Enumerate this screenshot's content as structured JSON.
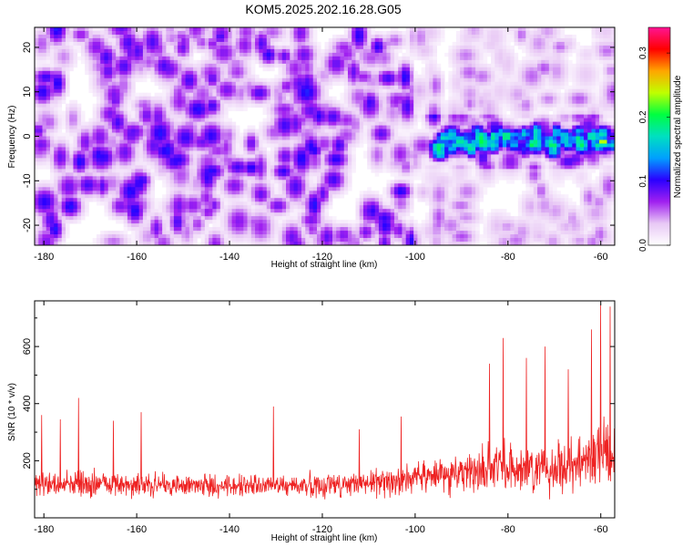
{
  "figure_title": "KOM5.2025.202.16.28.G05",
  "chart_data": [
    {
      "type": "heatmap",
      "title": "KOM5.2025.202.16.28.G05",
      "xlabel": "Height of straight line (km)",
      "ylabel": "Frequency (Hz)",
      "xlim": [
        -182,
        -57
      ],
      "ylim": [
        -24.5,
        24.5
      ],
      "xticks": [
        -180,
        -160,
        -140,
        -120,
        -100,
        -80,
        -60
      ],
      "yticks": [
        -20,
        -10,
        0,
        10,
        20
      ],
      "colorbar": {
        "label": "Normalized spectral amplitude",
        "range": [
          0.0,
          0.34
        ],
        "ticks": [
          0.0,
          0.1,
          0.2,
          0.3
        ],
        "colors": [
          "#ffffff",
          "#e8c8f5",
          "#a020f0",
          "#2a00ff",
          "#00a0ff",
          "#00e0c0",
          "#00ff40",
          "#c0ff00",
          "#ffa500",
          "#ff0000",
          "#ff1493"
        ]
      },
      "features": [
        {
          "x_range": [
            -182,
            -100
          ],
          "y_range": [
            -24.5,
            24.5
          ],
          "typical_amplitude": 0.05,
          "max_amplitude": 0.12
        },
        {
          "x_range": [
            -100,
            -57
          ],
          "y_range": [
            -5,
            5
          ],
          "typical_amplitude": 0.15,
          "max_amplitude": 0.33
        },
        {
          "x": -59.5,
          "y": -1.5,
          "amplitude": 0.33
        }
      ]
    },
    {
      "type": "line",
      "xlabel": "Height of straight line (km)",
      "ylabel": "SNR (10 * v/v)",
      "xlim": [
        -182,
        -57
      ],
      "ylim": [
        0,
        760
      ],
      "xticks": [
        -180,
        -160,
        -140,
        -120,
        -100,
        -80,
        -60
      ],
      "yticks": [
        200,
        400,
        600
      ],
      "color": "#ee2222",
      "envelope_x": [
        -182,
        -170,
        -160,
        -150,
        -140,
        -130,
        -120,
        -110,
        -100,
        -95,
        -90,
        -85,
        -80,
        -75,
        -70,
        -65,
        -60,
        -57
      ],
      "envelope_mean": [
        120,
        120,
        115,
        112,
        112,
        112,
        115,
        120,
        140,
        150,
        160,
        170,
        175,
        170,
        180,
        190,
        230,
        230
      ],
      "envelope_spread": [
        60,
        65,
        60,
        55,
        55,
        55,
        60,
        65,
        75,
        90,
        100,
        110,
        120,
        120,
        125,
        140,
        170,
        160
      ],
      "peaks": [
        {
          "x": -180.5,
          "y": 360
        },
        {
          "x": -176.5,
          "y": 345
        },
        {
          "x": -172.5,
          "y": 420
        },
        {
          "x": -165,
          "y": 340
        },
        {
          "x": -159,
          "y": 370
        },
        {
          "x": -130.5,
          "y": 390
        },
        {
          "x": -112,
          "y": 310
        },
        {
          "x": -103,
          "y": 355
        },
        {
          "x": -84,
          "y": 540
        },
        {
          "x": -81,
          "y": 630
        },
        {
          "x": -76,
          "y": 560
        },
        {
          "x": -72,
          "y": 600
        },
        {
          "x": -67,
          "y": 520
        },
        {
          "x": -62,
          "y": 660
        },
        {
          "x": -60,
          "y": 745
        },
        {
          "x": -58,
          "y": 740
        }
      ]
    }
  ]
}
